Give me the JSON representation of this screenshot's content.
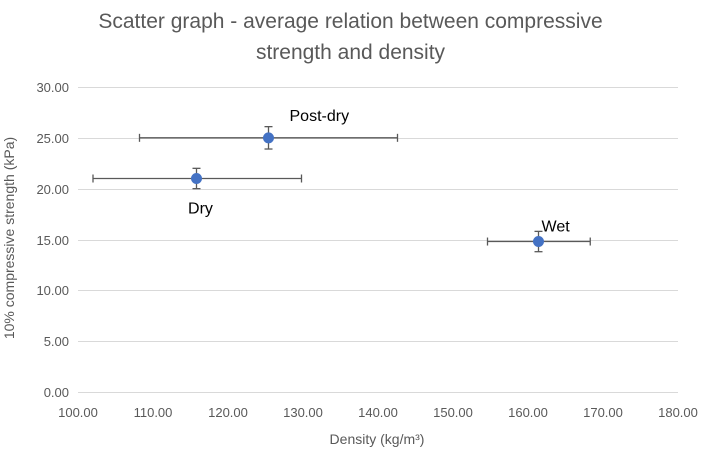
{
  "chart_data": {
    "type": "scatter",
    "title_line1": "Scatter graph - average relation between compressive",
    "title_line2": "strength and density",
    "xlabel": "Density (kg/m³)",
    "ylabel": "10% compressive strength (kPa)",
    "xlim": [
      100,
      180
    ],
    "ylim": [
      0,
      30
    ],
    "x_ticks": [
      100,
      110,
      120,
      130,
      140,
      150,
      160,
      170,
      180
    ],
    "y_ticks": [
      0,
      5,
      10,
      15,
      20,
      25,
      30
    ],
    "x_tick_labels": [
      "100.00",
      "110.00",
      "120.00",
      "130.00",
      "140.00",
      "150.00",
      "160.00",
      "170.00",
      "180.00"
    ],
    "y_tick_labels": [
      "0.00",
      "5.00",
      "10.00",
      "15.00",
      "20.00",
      "25.00",
      "30.00"
    ],
    "grid": "horizontal",
    "points": [
      {
        "label": "Dry",
        "x": 115.8,
        "y": 21.0,
        "x_err": [
          102.0,
          129.8
        ],
        "y_err": [
          20.0,
          22.0
        ],
        "label_pos": "below"
      },
      {
        "label": "Post-dry",
        "x": 125.4,
        "y": 25.0,
        "x_err": [
          108.2,
          142.6
        ],
        "y_err": [
          23.9,
          26.1
        ],
        "label_pos": "above-right"
      },
      {
        "label": "Wet",
        "x": 161.4,
        "y": 14.8,
        "x_err": [
          154.6,
          168.3
        ],
        "y_err": [
          13.8,
          15.8
        ],
        "label_pos": "above-right"
      }
    ],
    "colors": {
      "marker": "#4472C4",
      "error_bar": "#595959",
      "grid": "#D9D9D9",
      "text": "#595959"
    }
  }
}
